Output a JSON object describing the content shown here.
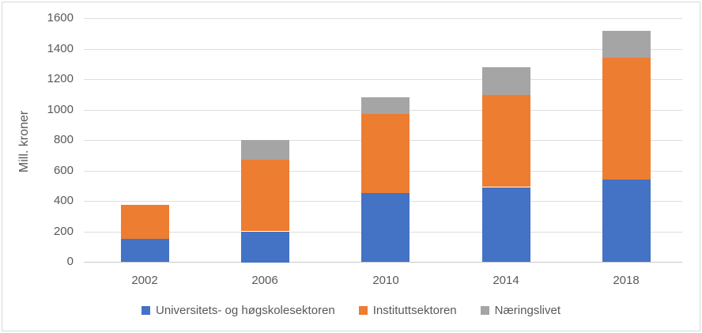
{
  "chart": {
    "ylabel": "Mill. kroner"
  },
  "colors": {
    "grid": "#dedede",
    "axis": "#c9c9c9",
    "text": "#595959",
    "frame": "#d9d9d9"
  },
  "chart_data": {
    "type": "bar",
    "stacked": true,
    "title": "",
    "xlabel": "",
    "ylabel": "Mill. kroner",
    "categories": [
      "2002",
      "2006",
      "2010",
      "2014",
      "2018"
    ],
    "series": [
      {
        "name": "Universitets- og høgskolesektoren",
        "color": "#4472C4",
        "values": [
          150,
          200,
          450,
          490,
          540
        ]
      },
      {
        "name": "Instituttsektoren",
        "color": "#ED7D31",
        "values": [
          225,
          470,
          520,
          610,
          800
        ]
      },
      {
        "name": "Næringslivet",
        "color": "#A5A5A5",
        "values": [
          0,
          130,
          110,
          180,
          175
        ]
      }
    ],
    "ylim": [
      0,
      1600
    ],
    "ytick_step": 200,
    "grid": true,
    "legend_position": "bottom"
  }
}
